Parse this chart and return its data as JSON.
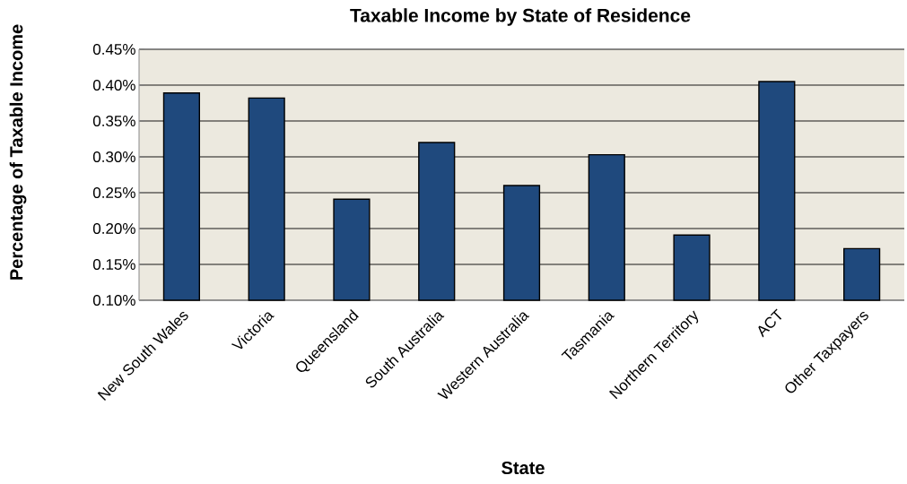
{
  "chart_data": {
    "type": "bar",
    "title": "Taxable Income by State of Residence",
    "xlabel": "State",
    "ylabel": "Percentage of Taxable Income",
    "categories": [
      "New South Wales",
      "Victoria",
      "Queensland",
      "South Australia",
      "Western Australia",
      "Tasmania",
      "Northern Territory",
      "ACT",
      "Other Taxpayers"
    ],
    "values": [
      0.389,
      0.382,
      0.241,
      0.32,
      0.26,
      0.303,
      0.191,
      0.405,
      0.172
    ],
    "color": "#1f497d",
    "ylim": [
      0.1,
      0.45
    ],
    "yticks": [
      {
        "value": 0.1,
        "label": "0.10%"
      },
      {
        "value": 0.15,
        "label": "0.15%"
      },
      {
        "value": 0.2,
        "label": "0.20%"
      },
      {
        "value": 0.25,
        "label": "0.25%"
      },
      {
        "value": 0.3,
        "label": "0.30%"
      },
      {
        "value": 0.35,
        "label": "0.35%"
      },
      {
        "value": 0.4,
        "label": "0.40%"
      },
      {
        "value": 0.45,
        "label": "0.45%"
      }
    ],
    "grid": "y"
  }
}
